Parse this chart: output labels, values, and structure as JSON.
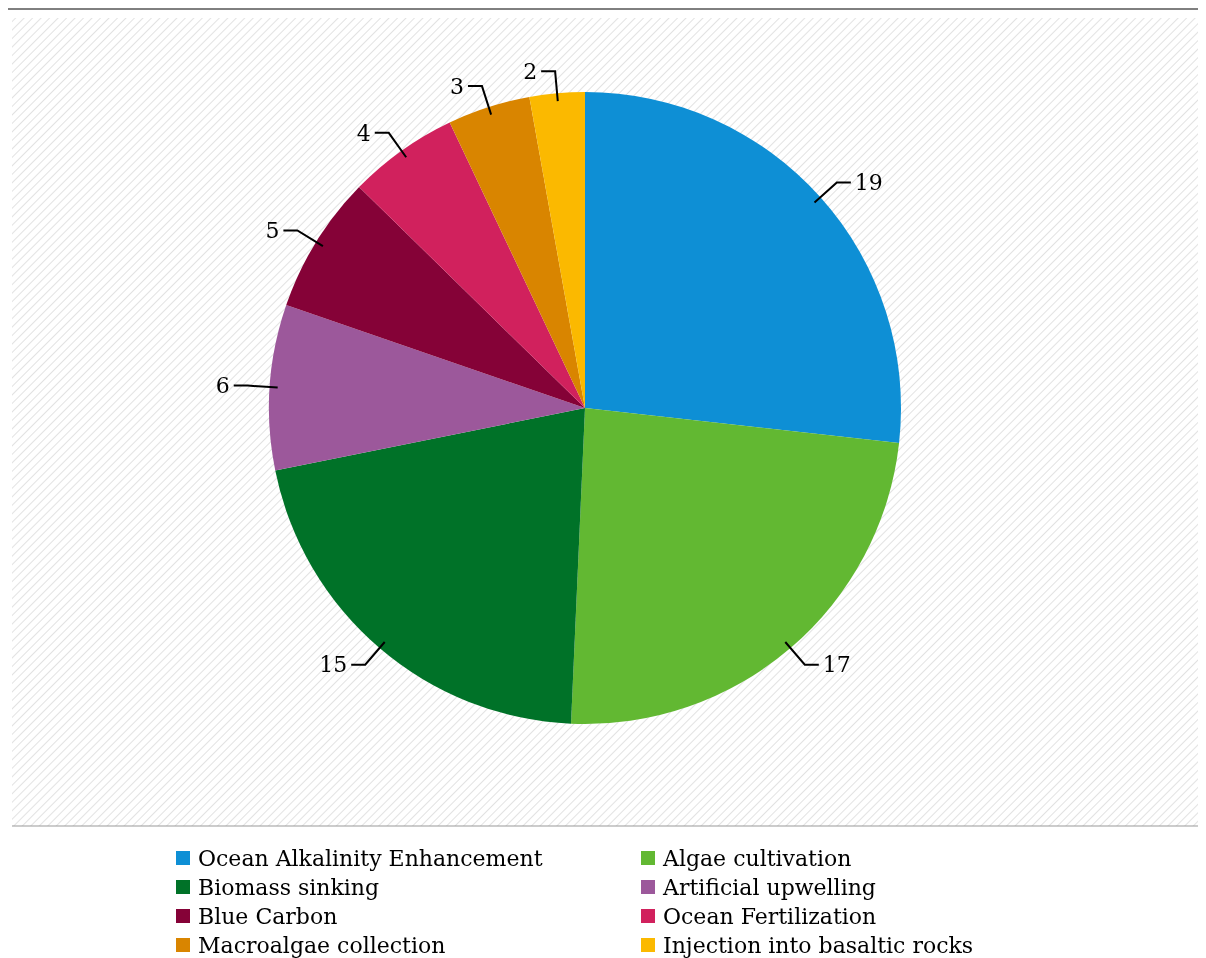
{
  "chart_data": {
    "type": "pie",
    "categories": [
      "Ocean Alkalinity Enhancement",
      "Algae cultivation",
      "Biomass sinking",
      "Artificial upwelling",
      "Blue Carbon",
      "Ocean Fertilization",
      "Macroalgae collection",
      "Injection into basaltic rocks"
    ],
    "values": [
      19,
      17,
      15,
      6,
      5,
      4,
      3,
      2
    ],
    "colors": [
      "#0e8fd5",
      "#62b832",
      "#007228",
      "#9c589b",
      "#850237",
      "#d1215d",
      "#d98500",
      "#fbb900"
    ],
    "data_labels": true,
    "legend": "bottom"
  }
}
